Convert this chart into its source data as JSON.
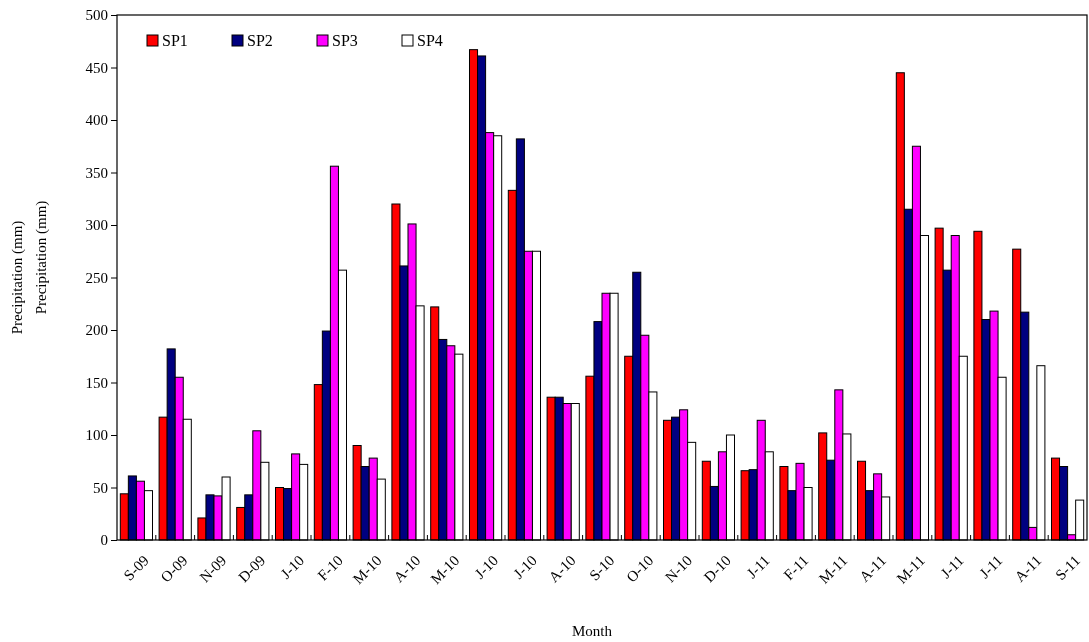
{
  "chart_data": {
    "type": "bar",
    "xlabel": "Month",
    "ylabel": "Precipitation (mm)",
    "annotations": [
      "Precipitation (mm)"
    ],
    "categories": [
      "S-09",
      "O-09",
      "N-09",
      "D-09",
      "J-10",
      "F-10",
      "M-10",
      "A-10",
      "M-10",
      "J-10",
      "J-10",
      "A-10",
      "S-10",
      "O-10",
      "N-10",
      "D-10",
      "J-11",
      "F-11",
      "M-11",
      "A-11",
      "M-11",
      "J-11",
      "J-11",
      "A-11",
      "S-11"
    ],
    "series": [
      {
        "name": "SP1",
        "color": "#ff0000",
        "values": [
          44,
          117,
          21,
          31,
          50,
          148,
          90,
          320,
          222,
          467,
          333,
          136,
          156,
          175,
          114,
          75,
          66,
          70,
          102,
          75,
          445,
          297,
          294,
          277,
          78
        ]
      },
      {
        "name": "SP2",
        "color": "#000080",
        "values": [
          61,
          182,
          43,
          43,
          49,
          199,
          70,
          261,
          191,
          461,
          382,
          136,
          208,
          255,
          117,
          51,
          67,
          47,
          76,
          47,
          315,
          257,
          210,
          217,
          70
        ]
      },
      {
        "name": "SP3",
        "color": "#ff00ff",
        "values": [
          56,
          155,
          42,
          104,
          82,
          356,
          78,
          301,
          185,
          388,
          275,
          130,
          235,
          195,
          124,
          84,
          114,
          73,
          143,
          63,
          375,
          290,
          218,
          12,
          5
        ]
      },
      {
        "name": "SP4",
        "color": "#ffffff",
        "values": [
          47,
          115,
          60,
          74,
          72,
          257,
          58,
          223,
          177,
          385,
          275,
          130,
          235,
          141,
          93,
          100,
          84,
          50,
          101,
          41,
          290,
          175,
          155,
          166,
          38
        ]
      }
    ],
    "ylim": [
      0,
      500
    ],
    "yticks": [
      0,
      50,
      100,
      150,
      200,
      250,
      300,
      350,
      400,
      450,
      500
    ],
    "legend": "top left",
    "grid": false
  }
}
